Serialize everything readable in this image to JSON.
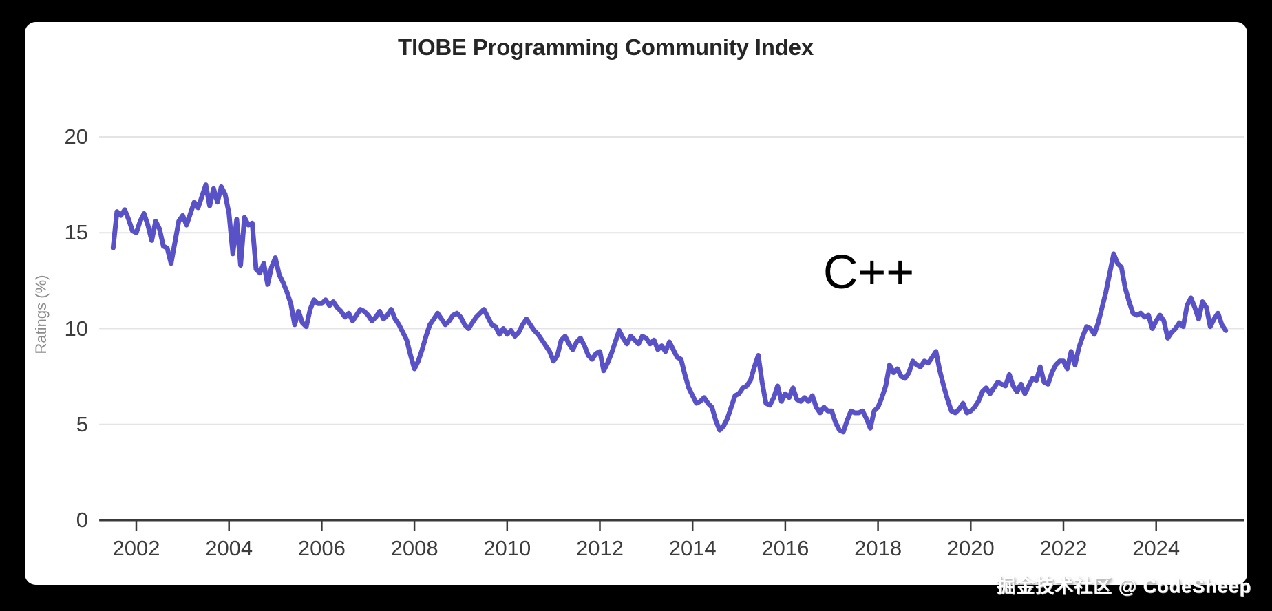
{
  "title": "TIOBE Programming Community Index",
  "annotation": "C++",
  "watermark": "掘金技术社区 @ CodeSheep",
  "colors": {
    "page_background": "#000000",
    "card_background": "#ffffff",
    "line": "#5951c6",
    "gridline": "#e4e4e4",
    "axis": "#3a3a3a",
    "tick_text": "#3d3d3d",
    "title_text": "#262626",
    "y_axis_title_text": "#8c8c8c",
    "annotation_text": "#000000",
    "watermark_text": "#ffffff"
  },
  "chart_data": {
    "type": "line",
    "title": "TIOBE Programming Community Index",
    "xlabel": "",
    "ylabel": "Ratings (%)",
    "legend": "none",
    "grid": "horizontal",
    "yticks": [
      0,
      5,
      10,
      15,
      20
    ],
    "xticks": [
      2002,
      2004,
      2006,
      2008,
      2010,
      2012,
      2014,
      2016,
      2018,
      2020,
      2022,
      2024
    ],
    "ylim": [
      0,
      21.5
    ],
    "xlim": [
      2001.2,
      2025.9
    ],
    "series": [
      {
        "name": "C++",
        "color": "#5951c6",
        "start_year": 2001,
        "start_month": 7,
        "interval": "monthly",
        "values": [
          14.2,
          16.1,
          15.9,
          16.2,
          15.7,
          15.1,
          15.0,
          15.6,
          16.0,
          15.4,
          14.6,
          15.6,
          15.2,
          14.3,
          14.2,
          13.4,
          14.5,
          15.6,
          15.9,
          15.4,
          16.0,
          16.6,
          16.3,
          16.9,
          17.5,
          16.4,
          17.3,
          16.6,
          17.4,
          17.0,
          16.0,
          13.9,
          15.7,
          13.3,
          15.8,
          15.4,
          15.5,
          13.1,
          12.9,
          13.4,
          12.3,
          13.2,
          13.7,
          12.8,
          12.4,
          11.9,
          11.3,
          10.2,
          10.9,
          10.3,
          10.1,
          11.0,
          11.5,
          11.3,
          11.3,
          11.5,
          11.2,
          11.4,
          11.1,
          10.9,
          10.6,
          10.8,
          10.4,
          10.7,
          11.0,
          10.9,
          10.7,
          10.4,
          10.6,
          10.9,
          10.5,
          10.7,
          11.0,
          10.5,
          10.2,
          9.8,
          9.4,
          8.6,
          7.9,
          8.3,
          8.9,
          9.6,
          10.2,
          10.5,
          10.8,
          10.5,
          10.2,
          10.4,
          10.7,
          10.8,
          10.6,
          10.2,
          10.0,
          10.3,
          10.6,
          10.8,
          11.0,
          10.6,
          10.2,
          10.1,
          9.7,
          10.0,
          9.7,
          9.9,
          9.6,
          9.8,
          10.2,
          10.5,
          10.2,
          9.9,
          9.7,
          9.4,
          9.1,
          8.8,
          8.3,
          8.6,
          9.4,
          9.6,
          9.2,
          8.9,
          9.3,
          9.5,
          9.1,
          8.6,
          8.4,
          8.7,
          8.8,
          7.8,
          8.2,
          8.7,
          9.3,
          9.9,
          9.5,
          9.2,
          9.6,
          9.4,
          9.2,
          9.6,
          9.5,
          9.2,
          9.4,
          8.9,
          9.1,
          8.8,
          9.3,
          8.9,
          8.5,
          8.4,
          7.6,
          6.9,
          6.5,
          6.1,
          6.2,
          6.4,
          6.1,
          5.9,
          5.2,
          4.7,
          4.9,
          5.3,
          5.9,
          6.5,
          6.6,
          6.9,
          7.0,
          7.3,
          8.0,
          8.6,
          7.2,
          6.1,
          6.0,
          6.4,
          7.0,
          6.2,
          6.6,
          6.4,
          6.9,
          6.3,
          6.2,
          6.4,
          6.2,
          6.5,
          5.9,
          5.6,
          5.9,
          5.7,
          5.7,
          5.1,
          4.7,
          4.6,
          5.2,
          5.7,
          5.6,
          5.6,
          5.7,
          5.3,
          4.8,
          5.7,
          5.9,
          6.4,
          7.0,
          8.1,
          7.7,
          7.9,
          7.5,
          7.4,
          7.7,
          8.3,
          8.1,
          8.0,
          8.3,
          8.2,
          8.5,
          8.8,
          7.8,
          7.0,
          6.3,
          5.7,
          5.6,
          5.8,
          6.1,
          5.6,
          5.7,
          5.9,
          6.2,
          6.7,
          6.9,
          6.6,
          6.9,
          7.2,
          7.1,
          7.0,
          7.6,
          7.0,
          6.7,
          7.1,
          6.6,
          7.0,
          7.4,
          7.3,
          8.0,
          7.2,
          7.1,
          7.7,
          8.1,
          8.3,
          8.3,
          7.9,
          8.8,
          8.1,
          9.0,
          9.6,
          10.1,
          10.0,
          9.7,
          10.3,
          11.1,
          11.9,
          12.9,
          13.9,
          13.4,
          13.2,
          12.1,
          11.4,
          10.8,
          10.7,
          10.8,
          10.6,
          10.7,
          10.0,
          10.4,
          10.7,
          10.4,
          9.5,
          9.8,
          10.0,
          10.3,
          10.1,
          11.2,
          11.6,
          11.1,
          10.5,
          11.4,
          11.1,
          10.1,
          10.5,
          10.8,
          10.2,
          9.9
        ]
      }
    ]
  }
}
